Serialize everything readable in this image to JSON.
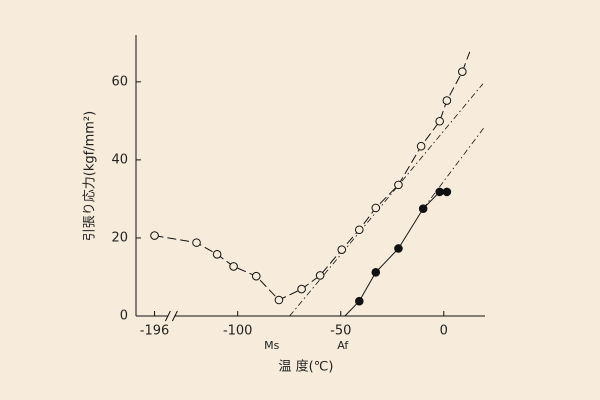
{
  "chart_data": {
    "type": "scatter",
    "xlabel": "温 度(℃)",
    "ylabel": "引張り応力(kgf/mm²)",
    "xlim": [
      -205,
      20
    ],
    "xbreak": [
      -190,
      -130
    ],
    "ylim": [
      0,
      72
    ],
    "xticks": [
      -196,
      -100,
      -50,
      0
    ],
    "yticks": [
      0,
      20,
      40,
      60
    ],
    "grid": false,
    "color": "#111111",
    "series": [
      {
        "marker": "open",
        "line": "dashed",
        "x": [
          -196,
          -120,
          -110,
          -102,
          -91,
          -80,
          -69,
          -60,
          -49.5,
          -41,
          -33,
          -22,
          -11,
          -2,
          1.5,
          9
        ],
        "values": [
          20.6,
          18.8,
          15.8,
          12.7,
          10.2,
          4.1,
          6.9,
          10.4,
          17.0,
          22.1,
          27.7,
          33.6,
          43.5,
          49.9,
          55.2,
          62.6
        ]
      },
      {
        "marker": "filled",
        "line": "solid",
        "x": [
          -41,
          -33,
          -22,
          -10,
          -2,
          1.5
        ],
        "values": [
          3.8,
          11.2,
          17.3,
          27.5,
          31.8,
          31.8
        ]
      }
    ],
    "guides": [
      {
        "style": "dashed",
        "x": [
          9,
          12.6
        ],
        "values": [
          62.6,
          67.7
        ]
      },
      {
        "style": "solid",
        "x": [
          -48,
          -41
        ],
        "values": [
          0,
          3.8
        ]
      },
      {
        "style": "dashdot",
        "x": [
          -74.8,
          19
        ],
        "values": [
          0,
          59.5
        ]
      },
      {
        "style": "dashdot",
        "x": [
          -10,
          20
        ],
        "values": [
          27.5,
          48.6
        ]
      }
    ],
    "annotations": [
      {
        "text": "Ms",
        "x": -83.5
      },
      {
        "text": "Af",
        "x": -49
      }
    ]
  }
}
